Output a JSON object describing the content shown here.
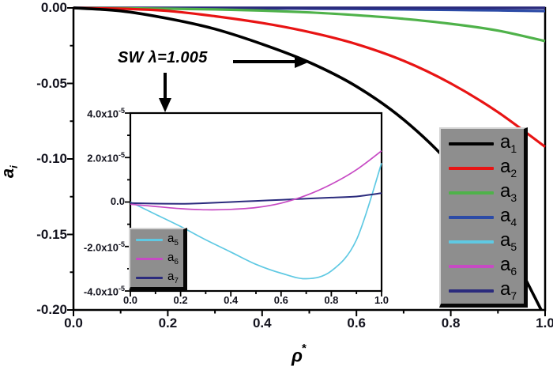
{
  "figure": {
    "background": "#ffffff",
    "annotation": "SW λ=1.005",
    "x_axis_label": {
      "base": "ρ",
      "sup": "*"
    },
    "y_axis_label": {
      "base": "a",
      "sub": "i"
    }
  },
  "chart_data": [
    {
      "id": "main",
      "type": "line",
      "title": "",
      "xlabel": "ρ*",
      "ylabel": "a_i",
      "xlim": [
        0.0,
        1.0
      ],
      "ylim": [
        -0.2,
        0.0
      ],
      "grid": false,
      "legend_position": "right",
      "x_ticks": [
        0.0,
        0.2,
        0.4,
        0.6,
        0.8,
        1.0
      ],
      "x_tick_labels": [
        "0.0",
        "0.2",
        "0.4",
        "0.6",
        "0.8",
        "1.0"
      ],
      "y_ticks": [
        0.0,
        -0.05,
        -0.1,
        -0.15,
        -0.2
      ],
      "y_tick_labels": [
        "0.00",
        "-0.05",
        "-0.10",
        "-0.15",
        "-0.20"
      ],
      "x": [
        0.0,
        0.1,
        0.2,
        0.3,
        0.4,
        0.5,
        0.6,
        0.7,
        0.8,
        0.9,
        1.0
      ],
      "legend": [
        "a1",
        "a2",
        "a3",
        "a4",
        "a5",
        "a6",
        "a7"
      ],
      "series": [
        {
          "name": "a1",
          "color": "#000000",
          "width": 3.6,
          "values": [
            0,
            -0.002,
            -0.007,
            -0.014,
            -0.024,
            -0.036,
            -0.052,
            -0.074,
            -0.104,
            -0.146,
            -0.205
          ]
        },
        {
          "name": "a2",
          "color": "#e81414",
          "width": 3.2,
          "values": [
            0,
            -0.0005,
            -0.002,
            -0.0055,
            -0.01,
            -0.016,
            -0.024,
            -0.035,
            -0.05,
            -0.069,
            -0.092
          ]
        },
        {
          "name": "a3",
          "color": "#4fb24a",
          "width": 3.2,
          "values": [
            0,
            -0.0002,
            -0.0005,
            -0.001,
            -0.0018,
            -0.003,
            -0.0048,
            -0.0072,
            -0.0105,
            -0.015,
            -0.022
          ]
        },
        {
          "name": "a4",
          "color": "#2c4ba6",
          "width": 3.2,
          "values": [
            0,
            -5e-05,
            -0.0001,
            -0.0002,
            -0.00035,
            -0.0005,
            -0.0007,
            -0.001,
            -0.0013,
            -0.0017,
            -0.0021
          ]
        },
        {
          "name": "a5",
          "color": "#5fc9e3",
          "width": 2.5,
          "values": [
            0,
            -5.5e-06,
            -1.1e-05,
            -1.7e-05,
            -2.25e-05,
            -2.8e-05,
            -3.2e-05,
            -3.45e-05,
            -3.1e-05,
            -1.7e-05,
            1.75e-05
          ]
        },
        {
          "name": "a6",
          "color": "#c74ac4",
          "width": 2.5,
          "values": [
            -1e-06,
            -2e-06,
            -3e-06,
            -3.5e-06,
            -3.3e-06,
            -2.5e-06,
            -5e-07,
            3e-06,
            8e-06,
            1.45e-05,
            2.3e-05
          ]
        },
        {
          "name": "a7",
          "color": "#2b2b7d",
          "width": 3.4,
          "values": [
            -5e-07,
            -7e-07,
            -8e-07,
            -5e-07,
            0,
            5e-07,
            1e-06,
            1.5e-06,
            2e-06,
            2.5e-06,
            4e-06
          ]
        }
      ]
    },
    {
      "id": "inset",
      "type": "line",
      "title": "",
      "xlabel": "ρ*",
      "ylabel": "a_i",
      "values_unit": "1e-5",
      "xlim": [
        0.0,
        1.0
      ],
      "ylim": [
        -4,
        4
      ],
      "grid": false,
      "legend_position": "lower-left",
      "x_ticks": [
        0.0,
        0.2,
        0.4,
        0.6,
        0.8,
        1.0
      ],
      "x_tick_labels": [
        "0.0",
        "0.2",
        "0.4",
        "0.6",
        "0.8",
        "1.0"
      ],
      "y_ticks": [
        4,
        2,
        0,
        -2,
        -4
      ],
      "y_tick_labels": [
        "4.0x10^-5",
        "2.0x10^-5",
        "0.0",
        "-2.0x10^-5",
        "-4.0x10^-5"
      ],
      "x": [
        0.0,
        0.1,
        0.2,
        0.3,
        0.4,
        0.5,
        0.6,
        0.7,
        0.8,
        0.9,
        1.0
      ],
      "legend": [
        "a5",
        "a6",
        "a7"
      ],
      "series": [
        {
          "name": "a5",
          "color": "#5fc9e3",
          "width": 1.7,
          "values": [
            0,
            -0.55,
            -1.1,
            -1.7,
            -2.25,
            -2.8,
            -3.2,
            -3.45,
            -3.1,
            -1.7,
            1.75
          ]
        },
        {
          "name": "a6",
          "color": "#c74ac4",
          "width": 1.7,
          "values": [
            -0.1,
            -0.2,
            -0.3,
            -0.35,
            -0.33,
            -0.25,
            -0.05,
            0.3,
            0.8,
            1.45,
            2.3
          ]
        },
        {
          "name": "a7",
          "color": "#2b2b7d",
          "width": 2.0,
          "values": [
            -0.05,
            -0.07,
            -0.08,
            -0.05,
            0,
            0.05,
            0.1,
            0.15,
            0.2,
            0.25,
            0.4
          ]
        }
      ]
    }
  ]
}
